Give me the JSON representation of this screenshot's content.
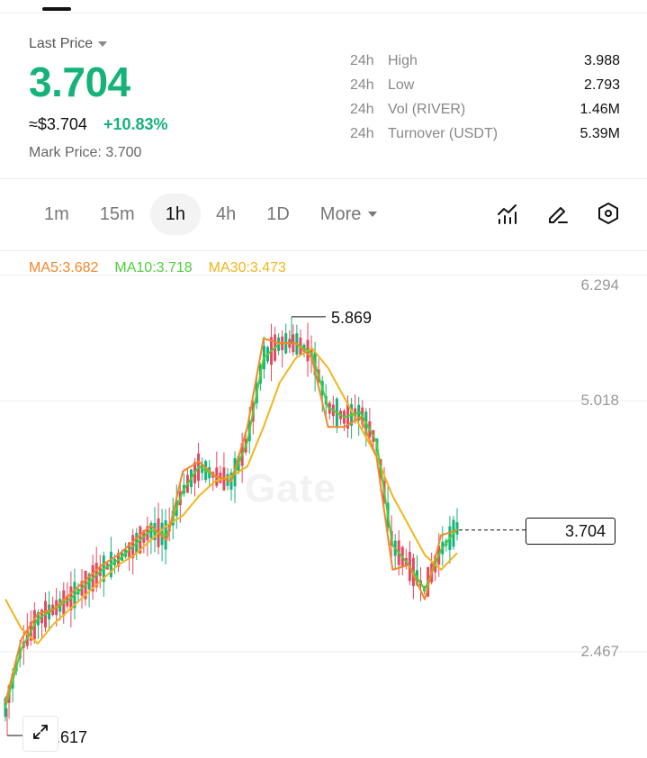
{
  "header": {
    "last_price_label": "Last Price",
    "last_price": "3.704",
    "usd_price": "≈$3.704",
    "change_pct": "+10.83%",
    "mark_price": "Mark Price:  3.700"
  },
  "stats": [
    {
      "period": "24h",
      "label": "High",
      "value": "3.988"
    },
    {
      "period": "24h",
      "label": "Low",
      "value": "2.793"
    },
    {
      "period": "24h",
      "label": "Vol (RIVER)",
      "value": "1.46M"
    },
    {
      "period": "24h",
      "label": "Turnover (USDT)",
      "value": "5.39M"
    }
  ],
  "timeframes": {
    "items": [
      "1m",
      "15m",
      "1h",
      "4h",
      "1D"
    ],
    "active": "1h",
    "more_label": "More"
  },
  "icons": [
    "indicator-icon",
    "draw-pencil-icon",
    "settings-hexagon-icon",
    "expand-icon"
  ],
  "ma": {
    "ma5": "MA5:3.682",
    "ma10": "MA10:3.718",
    "ma30": "MA30:3.473"
  },
  "colors": {
    "up": "#15b37a",
    "down": "#e8485f",
    "ma5": "#f2872b",
    "ma10": "#4fcf3a",
    "ma30": "#f3b51a"
  },
  "chart_data": {
    "type": "candlestick",
    "price_axis_ticks": [
      "6.294",
      "5.018",
      "2.467"
    ],
    "high_label": "5.869",
    "low_label": "1.617",
    "current_price_label": "3.704",
    "watermark": "Gate",
    "ma_series": {
      "ma5": [
        1.95,
        2.6,
        2.85,
        2.9,
        3.05,
        3.2,
        3.35,
        3.45,
        3.6,
        3.75,
        3.6,
        4.3,
        4.4,
        4.25,
        4.2,
        4.75,
        5.65,
        5.6,
        5.6,
        5.45,
        4.75,
        4.75,
        4.85,
        4.45,
        3.3,
        3.35,
        3.0,
        3.65,
        3.7
      ],
      "ma10": [
        1.9,
        2.5,
        2.8,
        2.9,
        3.0,
        3.15,
        3.3,
        3.4,
        3.55,
        3.7,
        3.65,
        4.1,
        4.35,
        4.25,
        4.2,
        4.6,
        5.45,
        5.6,
        5.6,
        5.5,
        4.95,
        4.85,
        4.9,
        4.6,
        3.55,
        3.35,
        3.1,
        3.5,
        3.72
      ],
      "ma30": [
        3.0,
        2.7,
        2.55,
        2.75,
        2.9,
        3.05,
        3.2,
        3.35,
        3.45,
        3.6,
        3.75,
        3.85,
        4.05,
        4.2,
        4.25,
        4.35,
        4.75,
        5.2,
        5.45,
        5.55,
        5.35,
        5.05,
        4.75,
        4.45,
        4.05,
        3.75,
        3.45,
        3.3,
        3.47
      ]
    }
  }
}
